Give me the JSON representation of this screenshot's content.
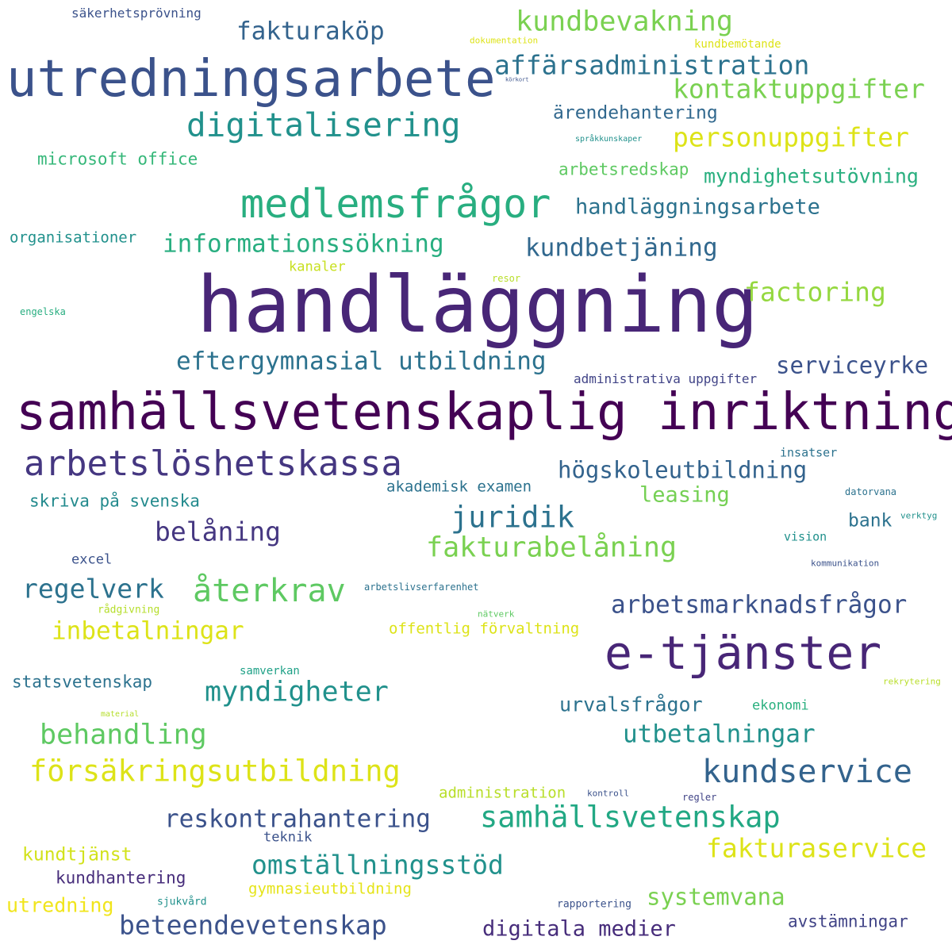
{
  "palette": {
    "deep_purple": "#440154",
    "purple": "#482677",
    "indigo": "#3b528b",
    "blue": "#2c728e",
    "teal": "#21918c",
    "green_teal": "#28ae80",
    "green": "#5ec962",
    "lime": "#addc30",
    "yellow": "#fde725"
  },
  "words": [
    "handläggning",
    "samhällsvetenskaplig inriktning",
    "utredningsarbete",
    "e-tjänster",
    "medlemsfrågor",
    "arbetslöshetskassa",
    "digitalisering",
    "kundservice",
    "återkrav",
    "försäkringsutbildning",
    "samhällsvetenskap",
    "kundbevakning",
    "affärsadministration",
    "kontaktuppgifter",
    "personuppgifter",
    "juridik",
    "fakturabelåning",
    "fakturaservice",
    "omställningsstöd",
    "beteendevetenskap",
    "myndigheter",
    "behandling",
    "informationssökning",
    "eftergymnasial utbildning",
    "fakturaköp",
    "kundbetjäning",
    "factoring",
    "belåning",
    "regelverk",
    "arbetsmarknadsfrågor",
    "inbetalningar",
    "reskontrahantering",
    "handläggningsarbete",
    "högskoleutbildning",
    "serviceyrke",
    "utbetalningar",
    "systemvana",
    "digitala medier",
    "ärendehantering",
    "myndighetsutövning",
    "leasing",
    "urvalsfrågor",
    "kundtjänst",
    "utredning",
    "statsvetenskap",
    "skriva på svenska",
    "kundhantering",
    "avstämningar",
    "bank",
    "microsoft office",
    "arbetsredskap",
    "organisationer",
    "offentlig förvaltning",
    "gymnasieutbildning",
    "administration",
    "akademisk examen",
    "administrativa uppgifter",
    "excel",
    "säkerhetsprövning",
    "ekonomi",
    "teknik",
    "kanaler",
    "insatser",
    "vision",
    "samverkan",
    "rapportering",
    "sjukvård",
    "rådgivning",
    "arbetslivserfarenhet",
    "kundbemötande",
    "dokumentation",
    "resor",
    "engelska",
    "datorvana",
    "regler",
    "kontroll",
    "kommunikation",
    "nätverk",
    "verktyg",
    "rekrytering",
    "material",
    "språkkunskaper",
    "körkort"
  ]
}
